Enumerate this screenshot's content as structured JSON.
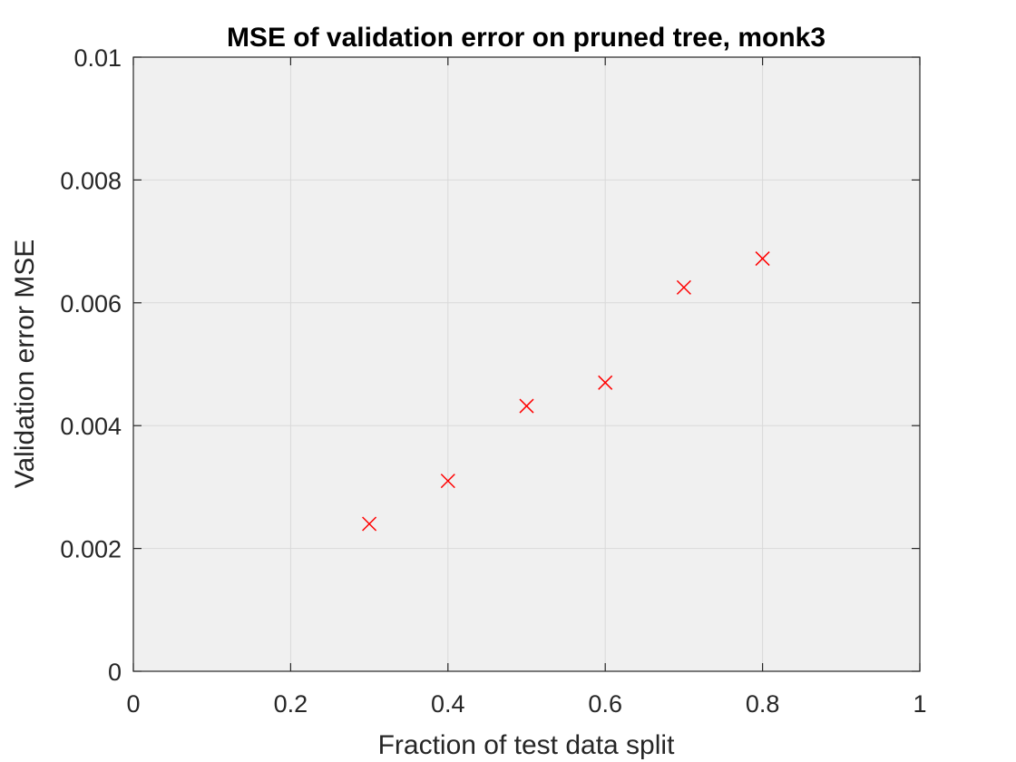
{
  "chart_data": {
    "type": "scatter",
    "title": "MSE of validation error on pruned tree, monk3",
    "xlabel": "Fraction of test data split",
    "ylabel": "Validation error MSE",
    "xlim": [
      0,
      1
    ],
    "ylim": [
      0,
      0.01
    ],
    "x_ticks": [
      "0",
      "0.2",
      "0.4",
      "0.6",
      "0.8",
      "1"
    ],
    "y_ticks": [
      "0",
      "0.002",
      "0.004",
      "0.006",
      "0.008",
      "0.01"
    ],
    "grid": true,
    "marker": "x",
    "series": [
      {
        "x": [
          0.3,
          0.4,
          0.5,
          0.6,
          0.7,
          0.8
        ],
        "y": [
          0.0024,
          0.0031,
          0.00432,
          0.0047,
          0.00625,
          0.00672
        ]
      }
    ],
    "colors": {
      "plot_background": "#f0f0f0",
      "grid": "#d9d9d9",
      "axes": "#262626",
      "marker": "#ff0000"
    }
  }
}
